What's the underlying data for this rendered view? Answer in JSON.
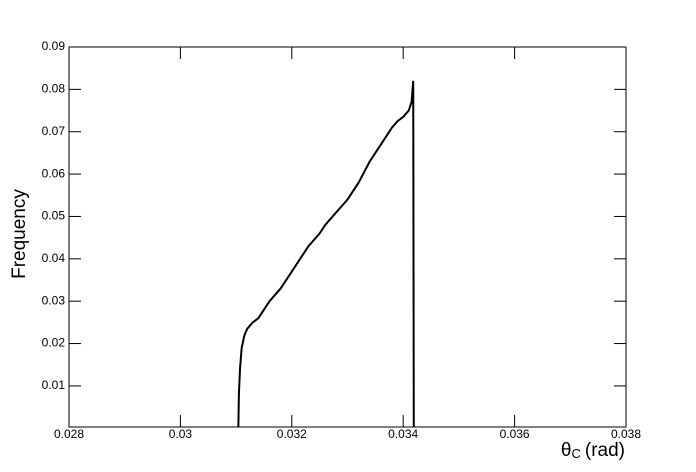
{
  "chart_data": {
    "type": "line",
    "y_label": "Frequency",
    "x_label": {
      "symbol": "θ",
      "subscript": "C",
      "unit": "(rad)"
    },
    "x": [
      0.03104,
      0.03105,
      0.03107,
      0.0311,
      0.03115,
      0.0312,
      0.0313,
      0.0314,
      0.0315,
      0.0316,
      0.0317,
      0.0318,
      0.0319,
      0.032,
      0.0321,
      0.0322,
      0.0323,
      0.0324,
      0.0325,
      0.0326,
      0.0327,
      0.0328,
      0.0329,
      0.033,
      0.0331,
      0.0332,
      0.0333,
      0.0334,
      0.0335,
      0.0336,
      0.0337,
      0.0338,
      0.0339,
      0.034,
      0.0341,
      0.03415,
      0.03418,
      0.03419
    ],
    "values": [
      0,
      0.008,
      0.014,
      0.019,
      0.022,
      0.0235,
      0.025,
      0.026,
      0.028,
      0.03,
      0.0315,
      0.033,
      0.035,
      0.037,
      0.039,
      0.041,
      0.043,
      0.0445,
      0.046,
      0.048,
      0.0495,
      0.051,
      0.0525,
      0.054,
      0.056,
      0.058,
      0.0605,
      0.063,
      0.065,
      0.067,
      0.069,
      0.071,
      0.0725,
      0.0735,
      0.075,
      0.077,
      0.082,
      0
    ],
    "color": "#000000",
    "xlim": [
      0.028,
      0.038
    ],
    "xticks": [
      0.028,
      0.03,
      0.032,
      0.034,
      0.036,
      0.038
    ],
    "ylim": [
      0.0003,
      0.09
    ],
    "yticks": [
      0.01,
      0.02,
      0.03,
      0.04,
      0.05,
      0.06,
      0.07,
      0.08,
      0.09
    ]
  }
}
